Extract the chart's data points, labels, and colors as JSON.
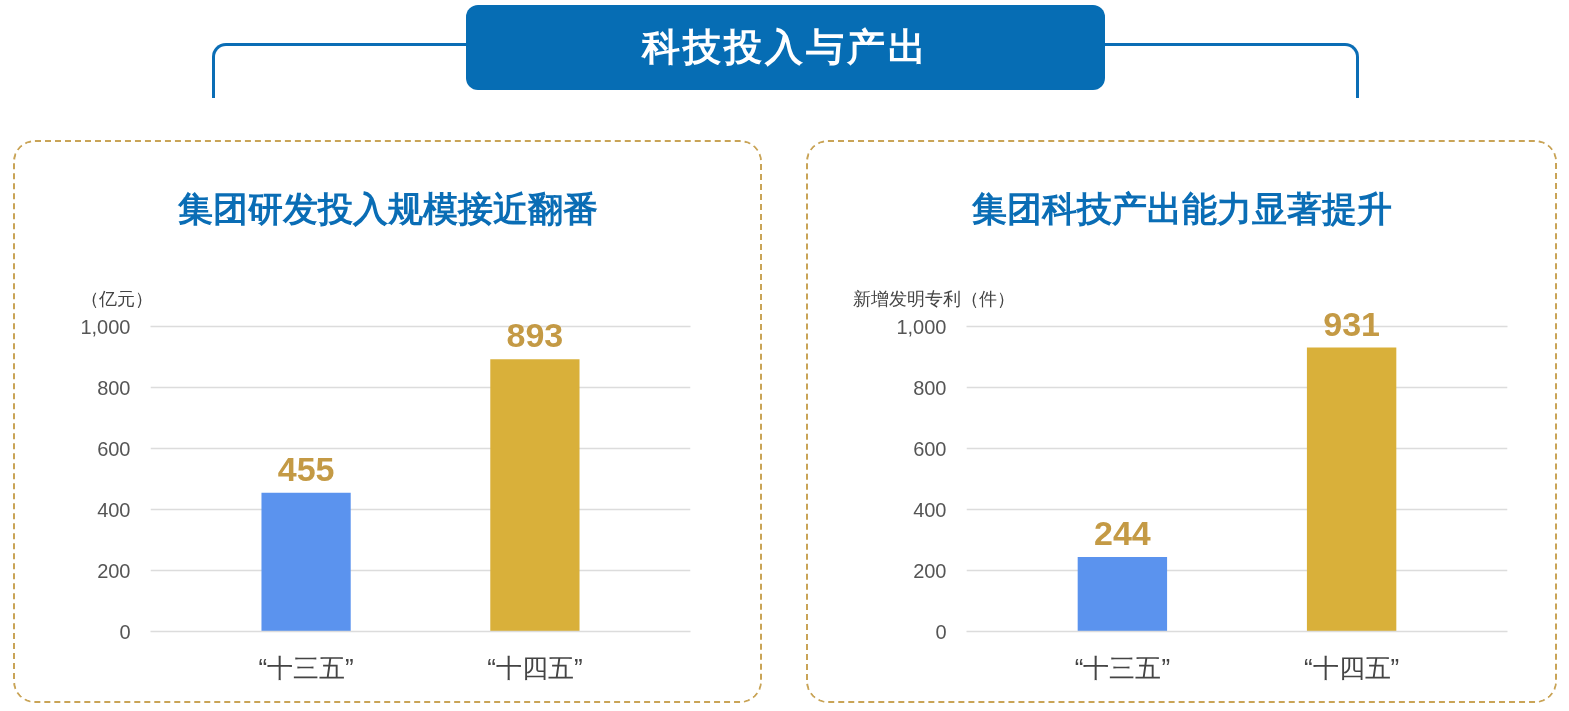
{
  "chart_data": [
    {
      "type": "bar",
      "title": "集团研发投入规模接近翻番",
      "ylabel": "（亿元）",
      "annotations": [
        "科技投入与产出"
      ],
      "categories": [
        "“十三五”",
        "“十四五”"
      ],
      "values": [
        455,
        893
      ],
      "colors": [
        "#5b93ee",
        "#d9b03a"
      ],
      "ylim": [
        0,
        1000
      ],
      "yticks": [
        0,
        200,
        400,
        600,
        800,
        {
          "value": 1000,
          "label": "1,000"
        }
      ],
      "grid": "y",
      "data_labels": true
    },
    {
      "type": "bar",
      "title": "集团科技产出能力显著提升",
      "ylabel": "新增发明专利（件）",
      "categories": [
        "“十三五”",
        "“十四五”"
      ],
      "values": [
        244,
        931
      ],
      "colors": [
        "#5b93ee",
        "#d9b03a"
      ],
      "ylim": [
        0,
        1000
      ],
      "yticks": [
        0,
        200,
        400,
        600,
        800,
        {
          "value": 1000,
          "label": "1,000"
        }
      ],
      "grid": "y",
      "data_labels": true
    }
  ]
}
